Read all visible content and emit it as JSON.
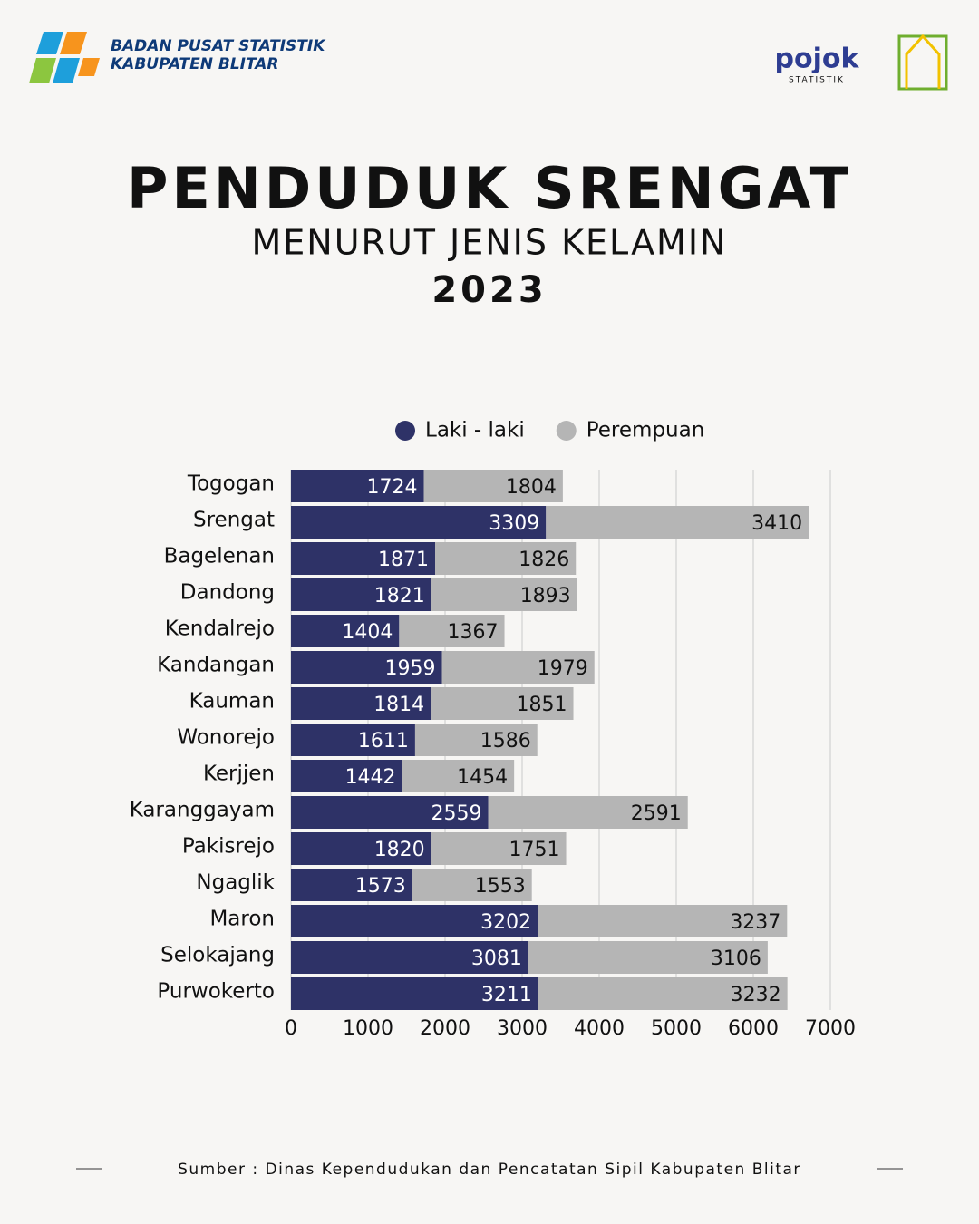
{
  "header": {
    "org_line1": "BADAN PUSAT STATISTIK",
    "org_line2": "KABUPATEN BLITAR",
    "partner": "pojok",
    "partner_sub": "STATISTIK"
  },
  "chart_data": {
    "type": "stacked_bar_horizontal",
    "title": "PENDUDUK SRENGAT",
    "subtitle": "MENURUT JENIS KELAMIN",
    "year": "2023",
    "categories": [
      "Togogan",
      "Srengat",
      "Bagelenan",
      "Dandong",
      "Kendalrejo",
      "Kandangan",
      "Kauman",
      "Wonorejo",
      "Kerjjen",
      "Karanggayam",
      "Pakisrejo",
      "Ngaglik",
      "Maron",
      "Selokajang",
      "Purwokerto"
    ],
    "series": [
      {
        "name": "Laki - laki",
        "color": "#2e3267",
        "values": [
          1724,
          3309,
          1871,
          1821,
          1404,
          1959,
          1814,
          1611,
          1442,
          2559,
          1820,
          1573,
          3202,
          3081,
          3211
        ]
      },
      {
        "name": "Perempuan",
        "color": "#b5b5b5",
        "values": [
          1804,
          3410,
          1826,
          1893,
          1367,
          1979,
          1851,
          1586,
          1454,
          2591,
          1751,
          1553,
          3237,
          3106,
          3232
        ]
      }
    ],
    "xlim": [
      0,
      7000
    ],
    "xticks": [
      0,
      1000,
      2000,
      3000,
      4000,
      5000,
      6000,
      7000
    ],
    "grid": true,
    "source": "Sumber : Dinas Kependudukan dan Pencatatan Sipil Kabupaten Blitar"
  }
}
